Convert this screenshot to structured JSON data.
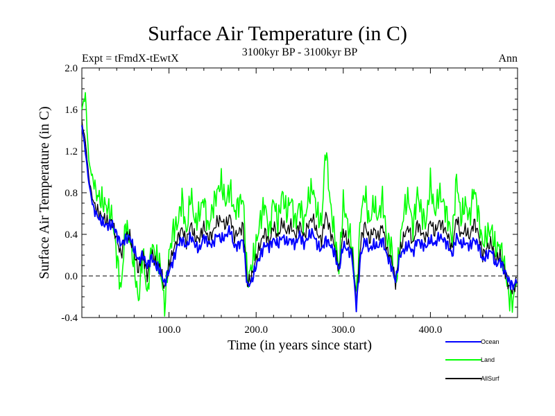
{
  "chart_data": {
    "type": "line",
    "title": "Surface Air Temperature (in C)",
    "subtitle": "3100kyr BP - 3100kyr BP",
    "left_label": "Expt = tFmdX-tEwtX",
    "right_label": "Ann",
    "xlabel": "Time (in years since start)",
    "ylabel": "Surface Air Temperature (in C)",
    "xlim": [
      0,
      500
    ],
    "ylim": [
      -0.4,
      2.0
    ],
    "x_ticks": [
      100,
      200,
      300,
      400
    ],
    "x_tick_labels": [
      "100.0",
      "200.0",
      "300.0",
      "400.0"
    ],
    "y_ticks": [
      -0.4,
      0.0,
      0.4,
      0.8,
      1.2,
      1.6,
      2.0
    ],
    "y_tick_labels": [
      "-0.4",
      "0.0",
      "0.4",
      "0.8",
      "1.2",
      "1.6",
      "2.0"
    ],
    "zero_line": 0.0,
    "legend_position": "bottom-right",
    "series_order": [
      "Land",
      "AllSurf",
      "Ocean"
    ],
    "series": [
      {
        "name": "Ocean",
        "color": "#0000ff",
        "x": [
          0,
          4,
          8,
          12,
          16,
          20,
          25,
          30,
          35,
          40,
          45,
          50,
          55,
          60,
          65,
          70,
          75,
          80,
          85,
          90,
          95,
          100,
          105,
          110,
          115,
          120,
          125,
          130,
          135,
          140,
          145,
          150,
          155,
          160,
          165,
          170,
          175,
          180,
          185,
          190,
          195,
          200,
          205,
          210,
          215,
          220,
          225,
          230,
          235,
          240,
          245,
          250,
          255,
          260,
          265,
          270,
          275,
          280,
          285,
          290,
          295,
          300,
          305,
          310,
          315,
          320,
          325,
          330,
          335,
          340,
          345,
          350,
          355,
          360,
          365,
          370,
          375,
          380,
          385,
          390,
          395,
          400,
          405,
          410,
          415,
          420,
          425,
          430,
          435,
          440,
          445,
          450,
          455,
          460,
          465,
          470,
          475,
          480,
          485,
          490,
          495,
          499
        ],
        "values": [
          1.45,
          1.2,
          0.9,
          0.7,
          0.6,
          0.55,
          0.5,
          0.48,
          0.5,
          0.4,
          0.3,
          0.35,
          0.38,
          0.25,
          0.15,
          0.2,
          0.1,
          0.18,
          0.1,
          0.05,
          -0.08,
          0.05,
          0.15,
          0.3,
          0.35,
          0.28,
          0.38,
          0.3,
          0.25,
          0.38,
          0.32,
          0.3,
          0.4,
          0.35,
          0.38,
          0.45,
          0.28,
          0.3,
          0.35,
          -0.1,
          -0.05,
          0.1,
          0.2,
          0.3,
          0.28,
          0.35,
          0.3,
          0.38,
          0.32,
          0.35,
          0.3,
          0.4,
          0.3,
          0.38,
          0.42,
          0.3,
          0.25,
          0.35,
          0.3,
          0.22,
          0.05,
          0.3,
          0.25,
          0.2,
          -0.3,
          0.2,
          0.35,
          0.25,
          0.3,
          0.28,
          0.35,
          0.2,
          0.1,
          -0.05,
          0.2,
          0.25,
          0.3,
          0.22,
          0.35,
          0.3,
          0.28,
          0.35,
          0.3,
          0.38,
          0.35,
          0.3,
          0.2,
          0.38,
          0.3,
          0.32,
          0.28,
          0.35,
          0.3,
          0.15,
          0.2,
          0.25,
          0.1,
          0.15,
          0.05,
          -0.05,
          -0.1,
          -0.05
        ]
      },
      {
        "name": "Land",
        "color": "#00ff00",
        "x": [
          0,
          4,
          8,
          12,
          16,
          20,
          25,
          30,
          35,
          40,
          45,
          50,
          55,
          60,
          65,
          70,
          75,
          80,
          85,
          90,
          95,
          100,
          105,
          110,
          115,
          120,
          125,
          130,
          135,
          140,
          145,
          150,
          155,
          160,
          165,
          170,
          175,
          180,
          185,
          190,
          195,
          200,
          205,
          210,
          215,
          220,
          225,
          230,
          235,
          240,
          245,
          250,
          255,
          260,
          265,
          270,
          275,
          280,
          285,
          290,
          295,
          300,
          305,
          310,
          315,
          320,
          325,
          330,
          335,
          340,
          345,
          350,
          355,
          360,
          365,
          370,
          375,
          380,
          385,
          390,
          395,
          400,
          405,
          410,
          415,
          420,
          425,
          430,
          435,
          440,
          445,
          450,
          455,
          460,
          465,
          470,
          475,
          480,
          485,
          490,
          495,
          499
        ],
        "values": [
          1.6,
          1.75,
          1.1,
          0.95,
          0.8,
          0.75,
          0.7,
          0.65,
          0.55,
          0.2,
          -0.15,
          0.5,
          0.35,
          0.1,
          -0.25,
          0.25,
          -0.2,
          0.3,
          0.2,
          0.1,
          -0.3,
          0.2,
          0.45,
          0.5,
          0.75,
          0.4,
          0.8,
          0.5,
          0.6,
          0.75,
          0.45,
          0.65,
          0.8,
          0.9,
          0.7,
          0.85,
          0.6,
          0.7,
          0.75,
          -0.05,
          0.1,
          0.3,
          0.55,
          0.7,
          0.4,
          0.75,
          0.5,
          0.8,
          0.6,
          0.75,
          0.5,
          0.7,
          0.5,
          0.75,
          0.85,
          0.6,
          0.5,
          1.25,
          0.7,
          0.4,
          0.05,
          0.7,
          0.5,
          0.3,
          -0.2,
          0.6,
          0.8,
          0.5,
          0.7,
          0.55,
          0.75,
          0.35,
          0.3,
          -0.1,
          0.3,
          0.65,
          0.75,
          0.45,
          0.8,
          0.6,
          0.5,
          0.9,
          0.6,
          0.8,
          0.7,
          0.55,
          0.35,
          0.95,
          0.55,
          0.7,
          0.55,
          0.85,
          0.6,
          0.3,
          0.4,
          0.45,
          0.25,
          0.3,
          0.1,
          -0.2,
          -0.25,
          0.0
        ]
      },
      {
        "name": "AllSurf",
        "color": "#000000",
        "x": [
          0,
          4,
          8,
          12,
          16,
          20,
          25,
          30,
          35,
          40,
          45,
          50,
          55,
          60,
          65,
          70,
          75,
          80,
          85,
          90,
          95,
          100,
          105,
          110,
          115,
          120,
          125,
          130,
          135,
          140,
          145,
          150,
          155,
          160,
          165,
          170,
          175,
          180,
          185,
          190,
          195,
          200,
          205,
          210,
          215,
          220,
          225,
          230,
          235,
          240,
          245,
          250,
          255,
          260,
          265,
          270,
          275,
          280,
          285,
          290,
          295,
          300,
          305,
          310,
          315,
          320,
          325,
          330,
          335,
          340,
          345,
          350,
          355,
          360,
          365,
          370,
          375,
          380,
          385,
          390,
          395,
          400,
          405,
          410,
          415,
          420,
          425,
          430,
          435,
          440,
          445,
          450,
          455,
          460,
          465,
          470,
          475,
          480,
          485,
          490,
          495,
          499
        ],
        "values": [
          1.48,
          1.3,
          0.95,
          0.75,
          0.65,
          0.6,
          0.55,
          0.52,
          0.52,
          0.35,
          0.2,
          0.4,
          0.38,
          0.22,
          0.05,
          0.22,
          0.0,
          0.22,
          0.13,
          0.07,
          -0.12,
          0.1,
          0.25,
          0.36,
          0.46,
          0.32,
          0.5,
          0.36,
          0.36,
          0.48,
          0.36,
          0.41,
          0.52,
          0.54,
          0.48,
          0.58,
          0.38,
          0.42,
          0.48,
          -0.08,
          0.0,
          0.17,
          0.31,
          0.43,
          0.32,
          0.49,
          0.37,
          0.52,
          0.42,
          0.49,
          0.38,
          0.5,
          0.37,
          0.5,
          0.56,
          0.41,
          0.34,
          0.6,
          0.43,
          0.29,
          0.05,
          0.43,
          0.33,
          0.24,
          -0.26,
          0.33,
          0.5,
          0.34,
          0.45,
          0.37,
          0.49,
          0.25,
          0.17,
          -0.07,
          0.24,
          0.39,
          0.47,
          0.3,
          0.51,
          0.41,
          0.36,
          0.53,
          0.41,
          0.52,
          0.47,
          0.39,
          0.25,
          0.57,
          0.39,
          0.45,
          0.37,
          0.52,
          0.41,
          0.2,
          0.27,
          0.32,
          0.15,
          0.2,
          0.07,
          -0.1,
          -0.15,
          -0.03
        ]
      }
    ]
  }
}
